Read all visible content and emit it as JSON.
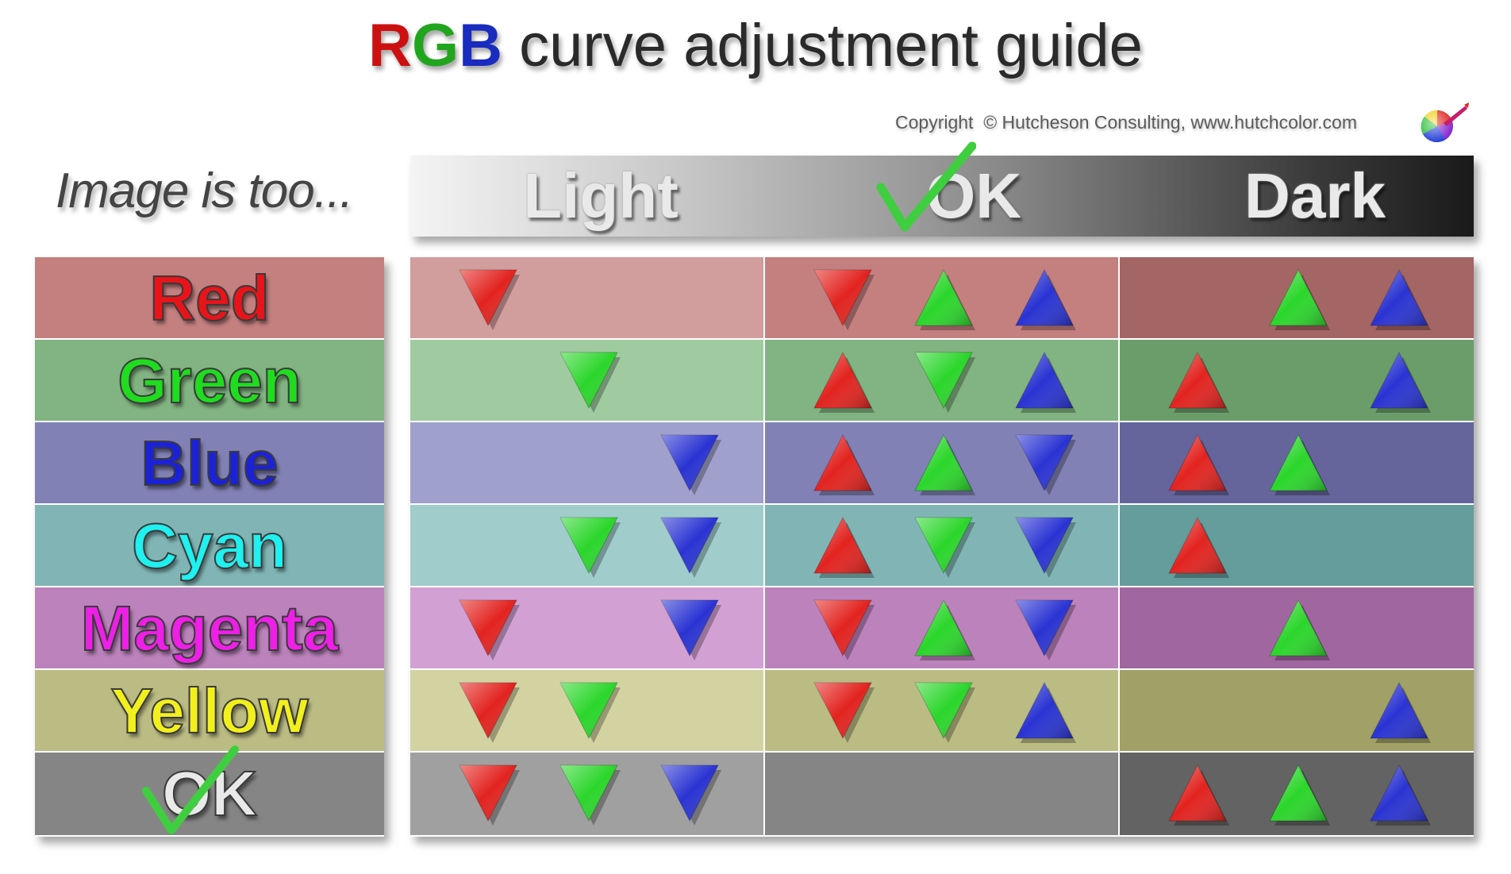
{
  "title": {
    "r": "R",
    "g": "G",
    "b": "B",
    "rest": " curve adjustment guide"
  },
  "copyright": "Copyright  © Hutcheson Consulting, www.hutchcolor.com",
  "subtitle": "Image is too...",
  "header": {
    "light": "Light",
    "ok": "OK",
    "dark": "Dark"
  },
  "rows": [
    {
      "label": "Red",
      "label_color": "#e8141a",
      "colors": [
        "#d19d9d",
        "#c47f7f",
        "#a46565"
      ],
      "cells": [
        [
          "down-red"
        ],
        [
          "down-red",
          "up-green",
          "up-blue"
        ],
        [
          "up-green",
          "up-blue"
        ]
      ]
    },
    {
      "label": "Green",
      "label_color": "#1fdc1f",
      "colors": [
        "#a0cba0",
        "#82b382",
        "#6b9d6b"
      ],
      "cells": [
        [
          "down-green"
        ],
        [
          "up-red",
          "down-green",
          "up-blue"
        ],
        [
          "up-red",
          "up-blue"
        ]
      ]
    },
    {
      "label": "Blue",
      "label_color": "#1b22d6",
      "colors": [
        "#a0a0cc",
        "#8181b5",
        "#65659c"
      ],
      "cells": [
        [
          "down-blue"
        ],
        [
          "up-red",
          "up-green",
          "down-blue"
        ],
        [
          "up-red",
          "up-green"
        ]
      ]
    },
    {
      "label": "Cyan",
      "label_color": "#1ff0f0",
      "colors": [
        "#a0cccc",
        "#81b5b5",
        "#659c9c"
      ],
      "cells": [
        [
          "down-green",
          "down-blue"
        ],
        [
          "up-red",
          "down-green",
          "down-blue"
        ],
        [
          "up-red"
        ]
      ]
    },
    {
      "label": "Magenta",
      "label_color": "#ee1fe6",
      "colors": [
        "#d3a0d3",
        "#bb82bb",
        "#a066a0"
      ],
      "cells": [
        [
          "down-red",
          "down-blue"
        ],
        [
          "down-red",
          "up-green",
          "down-blue"
        ],
        [
          "up-green"
        ]
      ]
    },
    {
      "label": "Yellow",
      "label_color": "#f2f01c",
      "colors": [
        "#d3d3a2",
        "#bbbb84",
        "#a1a066"
      ],
      "cells": [
        [
          "down-red",
          "down-green"
        ],
        [
          "down-red",
          "down-green",
          "up-blue"
        ],
        [
          "up-blue"
        ]
      ]
    },
    {
      "label": "OK",
      "label_color": "#e9e9e9",
      "colors": [
        "#a0a0a0",
        "#858585",
        "#636363"
      ],
      "cells": [
        [
          "down-red",
          "down-green",
          "down-blue"
        ],
        [],
        [
          "up-red",
          "up-green",
          "up-blue"
        ]
      ]
    }
  ],
  "arrow_colors": {
    "red": "#e2231f",
    "green": "#2bd62b",
    "blue": "#2a33d2"
  },
  "check_color": "#3fce3f",
  "icons": {
    "logo": "color-wheel-icon",
    "check": "checkmark-icon"
  }
}
